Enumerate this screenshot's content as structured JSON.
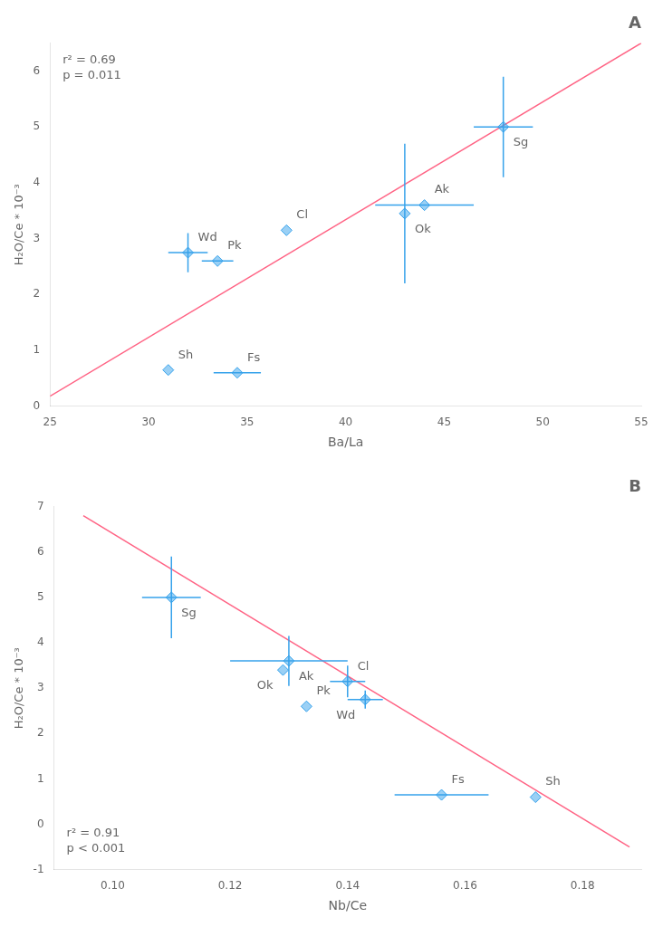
{
  "chart_data": [
    {
      "type": "scatter",
      "title": "A",
      "xlabel": "Ba/La",
      "ylabel": "H₂O/Ce * 10⁻³",
      "annotation": "r² = 0.69\np = 0.011",
      "xlim": [
        25,
        55
      ],
      "ylim": [
        0,
        6.5
      ],
      "xticks": [
        25,
        30,
        35,
        40,
        45,
        50,
        55
      ],
      "yticks": [
        0,
        1,
        2,
        3,
        4,
        5,
        6
      ],
      "grid": false,
      "series": [
        {
          "type": "scatter",
          "marker": "diamond",
          "labels": [
            "Sg",
            "Ak",
            "Ok",
            "Cl",
            "Wd",
            "Pk",
            "Sh",
            "Fs"
          ],
          "x": [
            48.0,
            44.0,
            43.0,
            37.0,
            32.0,
            33.5,
            31.0,
            34.5
          ],
          "values": [
            5.0,
            3.6,
            3.45,
            3.15,
            2.75,
            2.6,
            0.65,
            0.6
          ],
          "xerr": [
            1.5,
            2.5,
            0.0,
            0.0,
            1.0,
            0.8,
            0.0,
            1.2
          ],
          "yerr": [
            0.9,
            0.0,
            1.25,
            0.0,
            0.35,
            0.0,
            0.0,
            0.0
          ]
        },
        {
          "type": "line",
          "line_style": "solid",
          "x": [
            25,
            55
          ],
          "values": [
            0.18,
            6.5
          ]
        }
      ]
    },
    {
      "type": "scatter",
      "title": "B",
      "xlabel": "Nb/Ce",
      "ylabel": "H₂O/Ce * 10⁻³",
      "annotation": "r² = 0.91\np < 0.001",
      "xlim": [
        0.09,
        0.19
      ],
      "ylim": [
        -1,
        7
      ],
      "xticks": [
        {
          "value": 0.1,
          "label": "0.10"
        },
        0.12,
        0.14,
        0.16,
        0.18
      ],
      "yticks": [
        -1,
        0,
        1,
        2,
        3,
        4,
        5,
        6,
        7
      ],
      "grid": false,
      "series": [
        {
          "type": "scatter",
          "marker": "diamond",
          "labels": [
            "Sg",
            "Ak",
            "Ok",
            "Cl",
            "Wd",
            "Pk",
            "Sh",
            "Fs"
          ],
          "x": [
            0.11,
            0.13,
            0.129,
            0.14,
            0.143,
            0.133,
            0.172,
            0.156
          ],
          "values": [
            5.0,
            3.6,
            3.4,
            3.15,
            2.75,
            2.6,
            0.6,
            0.65
          ],
          "xerr": [
            0.005,
            0.01,
            0.0,
            0.003,
            0.003,
            0.0,
            0.0,
            0.008
          ],
          "yerr": [
            0.9,
            0.55,
            0.0,
            0.35,
            0.2,
            0.0,
            0.0,
            0.0
          ]
        },
        {
          "type": "line",
          "line_style": "solid",
          "x": [
            0.095,
            0.188
          ],
          "values": [
            6.8,
            -0.5
          ]
        }
      ]
    }
  ]
}
